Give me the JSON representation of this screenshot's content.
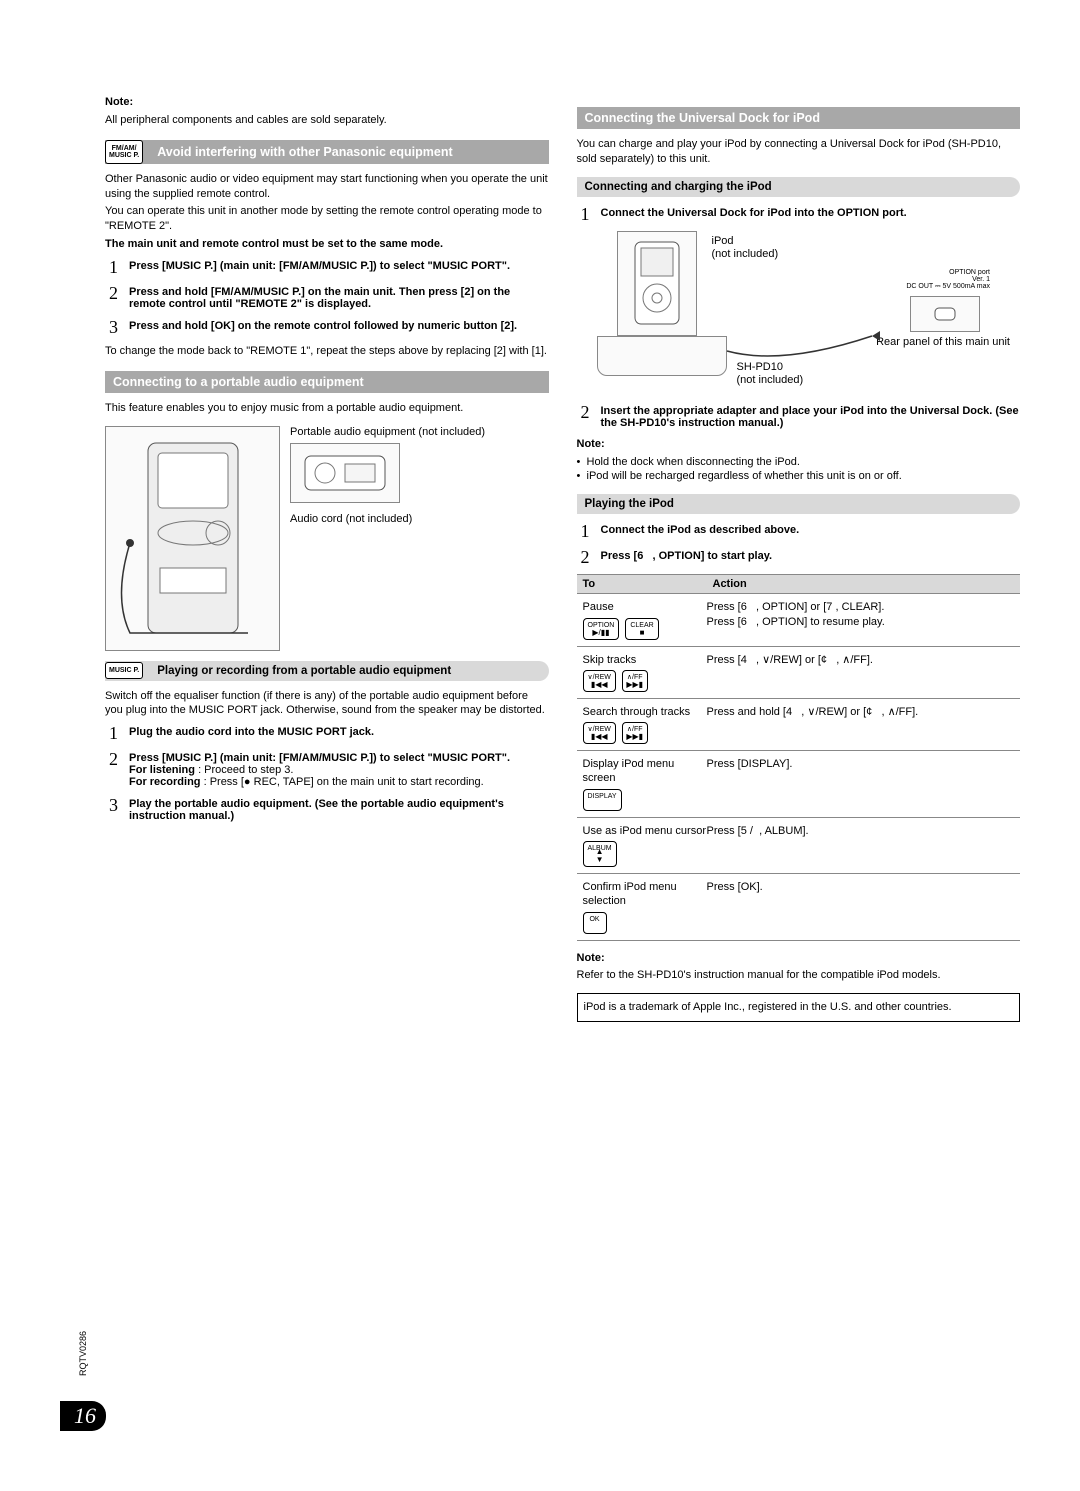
{
  "left": {
    "note_label": "Note:",
    "note_text": "All peripheral components and cables are sold separately.",
    "avoid_header_icon": "FM/AM/\nMUSIC P.",
    "avoid_header": "Avoid interfering with other Panasonic equipment",
    "avoid_p1": "Other Panasonic audio or video equipment may start functioning when you operate the unit using the supplied remote control.",
    "avoid_p2": "You can operate this unit in another mode by setting the remote control operating mode to \"REMOTE 2\".",
    "avoid_bold": "The main unit and remote control must be set to the same mode.",
    "avoid_steps": [
      "Press [MUSIC P.] (main unit: [FM/AM/MUSIC P.]) to select \"MUSIC PORT\".",
      "Press and hold [FM/AM/MUSIC P.] on the main unit. Then press [2] on the remote control until \"REMOTE 2\" is displayed.",
      "Press and hold [OK] on the remote control followed by numeric button [2]."
    ],
    "avoid_after": "To change the mode back to \"REMOTE 1\", repeat the steps above by replacing [2] with [1].",
    "portable_header": "Connecting to a portable audio equipment",
    "portable_intro": "This feature enables you to enjoy music from a portable audio equipment.",
    "portable_label1": "Portable audio equipment (not included)",
    "portable_label2": "Audio cord (not included)",
    "playrec_icon": "MUSIC P.",
    "playrec_header": "Playing or recording from a portable audio equipment",
    "playrec_intro": "Switch off the equaliser function (if there is any) of the portable audio equipment before you plug into the MUSIC PORT jack. Otherwise, sound from the speaker may be distorted.",
    "playrec_steps": [
      "Plug the audio cord into the MUSIC PORT jack.",
      "Press [MUSIC P.] (main unit: [FM/AM/MUSIC P.]) to select \"MUSIC PORT\".",
      "Play the portable audio equipment. (See the portable audio equipment's instruction manual.)"
    ],
    "playrec_step2_lines": {
      "listen_label": "For listening",
      "listen_text": ": Proceed to step 3.",
      "record_label": "For recording",
      "record_text": ": Press [● REC, TAPE] on the main unit to start recording."
    }
  },
  "right": {
    "dock_header": "Connecting the Universal Dock for iPod",
    "dock_intro": "You can charge and play your iPod by connecting a Universal Dock for iPod (SH-PD10, sold separately) to this unit.",
    "charge_header": "Connecting and charging the iPod",
    "charge_step1": "Connect the Universal Dock for iPod into the OPTION port.",
    "diagram_labels": {
      "ipod": "iPod\n(not included)",
      "port": "OPTION port\nVer. 1\nDC OUT ⎓ 5V 500mA max",
      "rear": "Rear panel of this main unit",
      "dock": "SH-PD10\n(not included)"
    },
    "charge_step2": "Insert the appropriate adapter and place your iPod into the Universal Dock. (See the SH-PD10's instruction manual.)",
    "charge_note_label": "Note:",
    "charge_notes": [
      "Hold the dock when disconnecting the iPod.",
      "iPod will be recharged regardless of whether this unit is on or off."
    ],
    "play_header": "Playing the iPod",
    "play_steps": [
      "Connect the iPod as described above.",
      "Press [6   , OPTION] to start play."
    ],
    "table_head": {
      "to": "To",
      "action": "Action"
    },
    "table_rows": [
      {
        "to": "Pause",
        "btn1": "OPTION",
        "btn1glyph": "▶/▮▮",
        "btn2": "CLEAR",
        "btn2glyph": "■",
        "action": "Press [6   , OPTION] or [7 , CLEAR].\nPress [6   , OPTION] to resume play."
      },
      {
        "to": "Skip tracks",
        "btn1": "∨/REW",
        "btn1glyph": "▮◀◀",
        "btn2": "∧/FF",
        "btn2glyph": "▶▶▮",
        "action": "Press [4   , ∨/REW] or [¢   , ∧/FF]."
      },
      {
        "to": "Search through tracks",
        "btn1": "∨/REW",
        "btn1glyph": "▮◀◀",
        "btn2": "∧/FF",
        "btn2glyph": "▶▶▮",
        "action": "Press and hold [4   , ∨/REW] or [¢   , ∧/FF]."
      },
      {
        "to": "Display iPod menu screen",
        "btn1": "DISPLAY",
        "action": "Press [DISPLAY]."
      },
      {
        "to": "Use as iPod menu cursor",
        "btn1": "ALBUM",
        "btn1glyph": "▲\n▼",
        "tall": true,
        "action": "Press [5 /  , ALBUM]."
      },
      {
        "to": "Confirm iPod menu selection",
        "btn1": "OK",
        "action": "Press [OK]."
      }
    ],
    "play_note_label": "Note:",
    "play_note_text": "Refer to the SH-PD10's instruction manual for the compatible iPod models.",
    "trademark": "iPod is a trademark of Apple Inc., registered in the U.S. and other countries."
  },
  "page_number": "16",
  "doc_id": "RQTV0286"
}
